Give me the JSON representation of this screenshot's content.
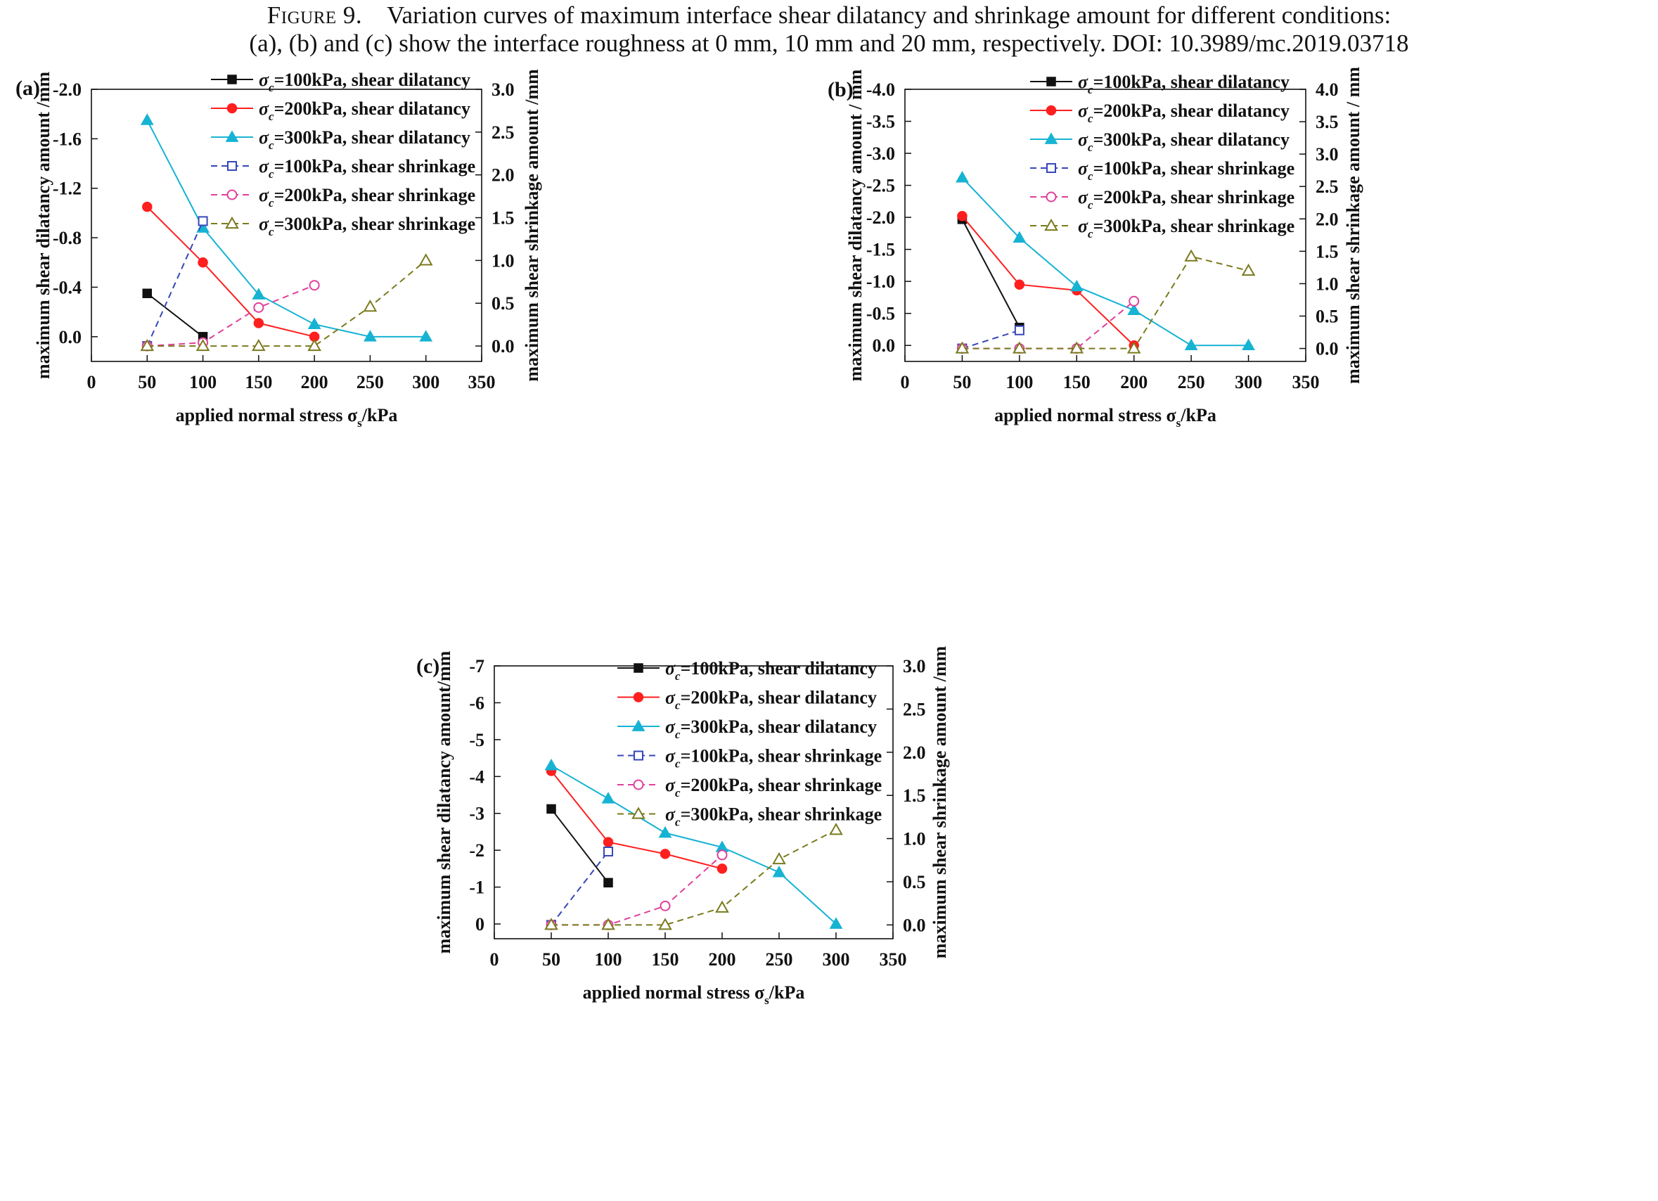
{
  "caption": {
    "label": "Figure 9.",
    "line1": "Variation curves of maximum interface shear dilatancy and shrinkage amount for different conditions:",
    "line2": "(a), (b) and (c) show the interface roughness at 0 mm, 10 mm and 20 mm, respectively.  DOI: 10.3989/mc.2019.03718"
  },
  "colors": {
    "s100_dil": "#111111",
    "s200_dil": "#ff1f1f",
    "s300_dil": "#17b3d3",
    "s100_shr": "#3547b8",
    "s200_shr": "#e0409a",
    "s300_shr": "#7a7a1e"
  },
  "chart_data": [
    {
      "panel_label": "(a)",
      "type": "line",
      "xlabel_pre": "applied normal stress σ",
      "xlabel_sub": "s",
      "xlabel_post": "/kPa",
      "ylabel_left": "maximum shear dilatancy amount  /mm",
      "ylabel_right": "maximum shear shrinkage amount  /mm",
      "xlim": [
        0,
        350
      ],
      "xticks": [
        0,
        50,
        100,
        150,
        200,
        250,
        300,
        350
      ],
      "ylim_left": [
        0.2,
        -2.0
      ],
      "yticks_left": [
        "-2.0",
        "-1.6",
        "-1.2",
        "-0.8",
        "-0.4",
        "0.0"
      ],
      "yticks_left_values": [
        -2.0,
        -1.6,
        -1.2,
        -0.8,
        -0.4,
        0.0
      ],
      "ylim_right": [
        -0.18,
        3.0
      ],
      "yticks_right": [
        "0.0",
        "0.5",
        "1.0",
        "1.5",
        "2.0",
        "2.5",
        "3.0"
      ],
      "yticks_right_values": [
        0.0,
        0.5,
        1.0,
        1.5,
        2.0,
        2.5,
        3.0
      ],
      "legend_position": "top-right",
      "series": [
        {
          "name": "σc=100kPa, shear dilatancy",
          "key": "s100_dil",
          "axis": "left",
          "marker": "square",
          "filled": true,
          "dashed": false,
          "x": [
            50,
            100
          ],
          "y": [
            -0.35,
            0.0
          ]
        },
        {
          "name": "σc=200kPa, shear dilatancy",
          "key": "s200_dil",
          "axis": "left",
          "marker": "circle",
          "filled": true,
          "dashed": false,
          "x": [
            50,
            100,
            150,
            200
          ],
          "y": [
            -1.05,
            -0.6,
            -0.11,
            0.0
          ]
        },
        {
          "name": "σc=300kPa, shear dilatancy",
          "key": "s300_dil",
          "axis": "left",
          "marker": "triangle",
          "filled": true,
          "dashed": false,
          "x": [
            50,
            100,
            150,
            200,
            250,
            300
          ],
          "y": [
            -1.75,
            -0.88,
            -0.34,
            -0.1,
            0.0,
            0.0
          ]
        },
        {
          "name": "σc=100kPa, shear shrinkage",
          "key": "s100_shr",
          "axis": "right",
          "marker": "square",
          "filled": false,
          "dashed": true,
          "x": [
            50,
            100
          ],
          "y": [
            0.0,
            1.46
          ]
        },
        {
          "name": "σc=200kPa, shear shrinkage",
          "key": "s200_shr",
          "axis": "right",
          "marker": "circle",
          "filled": false,
          "dashed": true,
          "x": [
            50,
            100,
            150,
            200
          ],
          "y": [
            0.0,
            0.04,
            0.45,
            0.71
          ]
        },
        {
          "name": "σc=300kPa, shear shrinkage",
          "key": "s300_shr",
          "axis": "right",
          "marker": "triangle",
          "filled": false,
          "dashed": true,
          "x": [
            50,
            100,
            150,
            200,
            250,
            300
          ],
          "y": [
            0.0,
            0.0,
            0.0,
            0.0,
            0.46,
            1.0
          ]
        }
      ]
    },
    {
      "panel_label": "(b)",
      "type": "line",
      "xlabel_pre": "applied normal stress σ",
      "xlabel_sub": "s",
      "xlabel_post": "/kPa",
      "ylabel_left": "maximum shear dilatancy amount / mm",
      "ylabel_right": "maximum shear shrinkage amount / mm",
      "xlim": [
        0,
        350
      ],
      "xticks": [
        0,
        50,
        100,
        150,
        200,
        250,
        300,
        350
      ],
      "ylim_left": [
        0.25,
        -4.0
      ],
      "yticks_left": [
        "-4.0",
        "-3.5",
        "-3.0",
        "-2.5",
        "-2.0",
        "-1.5",
        "-1.0",
        "-0.5",
        "0.0"
      ],
      "yticks_left_values": [
        -4.0,
        -3.5,
        -3.0,
        -2.5,
        -2.0,
        -1.5,
        -1.0,
        -0.5,
        0.0
      ],
      "ylim_right": [
        -0.2,
        4.0
      ],
      "yticks_right": [
        "0.0",
        "0.5",
        "1.0",
        "1.5",
        "2.0",
        "2.5",
        "3.0",
        "3.5",
        "4.0"
      ],
      "yticks_right_values": [
        0.0,
        0.5,
        1.0,
        1.5,
        2.0,
        2.5,
        3.0,
        3.5,
        4.0
      ],
      "legend_position": "top-right",
      "series": [
        {
          "name": "σc=100kPa, shear dilatancy",
          "key": "s100_dil",
          "axis": "left",
          "marker": "square",
          "filled": true,
          "dashed": false,
          "x": [
            50,
            100
          ],
          "y": [
            -1.97,
            -0.28
          ]
        },
        {
          "name": "σc=200kPa, shear dilatancy",
          "key": "s200_dil",
          "axis": "left",
          "marker": "circle",
          "filled": true,
          "dashed": false,
          "x": [
            50,
            100,
            150,
            200
          ],
          "y": [
            -2.02,
            -0.95,
            -0.86,
            0.0
          ]
        },
        {
          "name": "σc=300kPa, shear dilatancy",
          "key": "s300_dil",
          "axis": "left",
          "marker": "triangle",
          "filled": true,
          "dashed": false,
          "x": [
            50,
            100,
            150,
            200,
            250,
            300
          ],
          "y": [
            -2.62,
            -1.68,
            -0.92,
            -0.55,
            0.0,
            0.0
          ]
        },
        {
          "name": "σc=100kPa, shear shrinkage",
          "key": "s100_shr",
          "axis": "right",
          "marker": "square",
          "filled": false,
          "dashed": true,
          "x": [
            50,
            100
          ],
          "y": [
            0.0,
            0.28
          ]
        },
        {
          "name": "σc=200kPa, shear shrinkage",
          "key": "s200_shr",
          "axis": "right",
          "marker": "circle",
          "filled": false,
          "dashed": true,
          "x": [
            50,
            100,
            150,
            200
          ],
          "y": [
            0.0,
            0.0,
            0.0,
            0.73
          ]
        },
        {
          "name": "σc=300kPa, shear shrinkage",
          "key": "s300_shr",
          "axis": "right",
          "marker": "triangle",
          "filled": false,
          "dashed": true,
          "x": [
            50,
            100,
            150,
            200,
            250,
            300
          ],
          "y": [
            0.0,
            0.0,
            0.0,
            0.0,
            1.42,
            1.2
          ]
        }
      ]
    },
    {
      "panel_label": "(c)",
      "type": "line",
      "xlabel_pre": "applied normal stress σ",
      "xlabel_sub": "s",
      "xlabel_post": "/kPa",
      "ylabel_left": "maximum shear dilatancy amount/mm",
      "ylabel_right": "maximum shear shrinkage amount /mm",
      "xlim": [
        0,
        350
      ],
      "xticks": [
        0,
        50,
        100,
        150,
        200,
        250,
        300,
        350
      ],
      "ylim_left": [
        0.4,
        -7.0
      ],
      "yticks_left": [
        "-7",
        "-6",
        "-5",
        "-4",
        "-3",
        "-2",
        "-1",
        "0"
      ],
      "yticks_left_values": [
        -7,
        -6,
        -5,
        -4,
        -3,
        -2,
        -1,
        0
      ],
      "ylim_right": [
        -0.16,
        3.0
      ],
      "yticks_right": [
        "0.0",
        "0.5",
        "1.0",
        "1.5",
        "2.0",
        "2.5",
        "3.0"
      ],
      "yticks_right_values": [
        0.0,
        0.5,
        1.0,
        1.5,
        2.0,
        2.5,
        3.0
      ],
      "legend_position": "top-right",
      "series": [
        {
          "name": "σc=100kPa, shear dilatancy",
          "key": "s100_dil",
          "axis": "left",
          "marker": "square",
          "filled": true,
          "dashed": false,
          "x": [
            50,
            100
          ],
          "y": [
            -3.12,
            -1.12
          ]
        },
        {
          "name": "σc=200kPa, shear dilatancy",
          "key": "s200_dil",
          "axis": "left",
          "marker": "circle",
          "filled": true,
          "dashed": false,
          "x": [
            50,
            100,
            150,
            200
          ],
          "y": [
            -4.15,
            -2.22,
            -1.9,
            -1.5
          ]
        },
        {
          "name": "σc=300kPa, shear dilatancy",
          "key": "s300_dil",
          "axis": "left",
          "marker": "triangle",
          "filled": true,
          "dashed": false,
          "x": [
            50,
            100,
            150,
            200,
            250,
            300
          ],
          "y": [
            -4.3,
            -3.4,
            -2.47,
            -2.08,
            -1.4,
            0.0
          ]
        },
        {
          "name": "σc=100kPa, shear shrinkage",
          "key": "s100_shr",
          "axis": "right",
          "marker": "square",
          "filled": false,
          "dashed": true,
          "x": [
            50,
            100
          ],
          "y": [
            0.0,
            0.85
          ]
        },
        {
          "name": "σc=200kPa, shear shrinkage",
          "key": "s200_shr",
          "axis": "right",
          "marker": "circle",
          "filled": false,
          "dashed": true,
          "x": [
            50,
            100,
            150,
            200
          ],
          "y": [
            0.0,
            0.0,
            0.22,
            0.81
          ]
        },
        {
          "name": "σc=300kPa, shear shrinkage",
          "key": "s300_shr",
          "axis": "right",
          "marker": "triangle",
          "filled": false,
          "dashed": true,
          "x": [
            50,
            100,
            150,
            200,
            250,
            300
          ],
          "y": [
            0.0,
            0.0,
            0.0,
            0.2,
            0.76,
            1.1
          ]
        }
      ]
    }
  ]
}
